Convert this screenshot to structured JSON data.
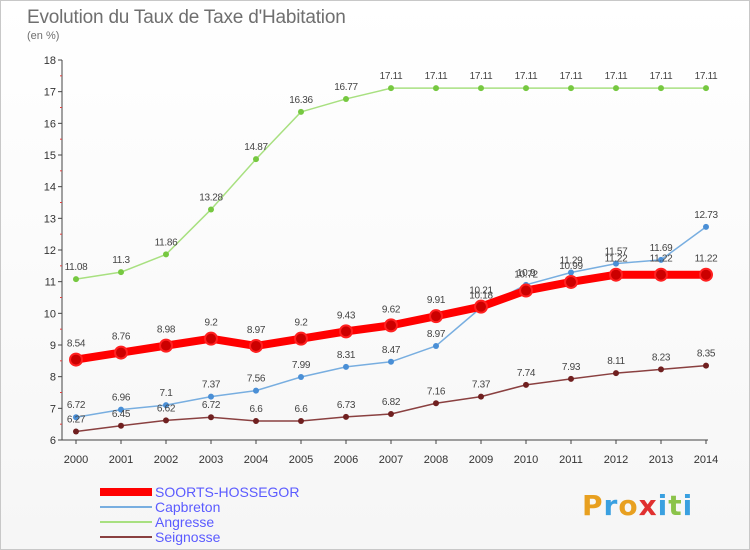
{
  "title": "Evolution du Taux de Taxe d'Habitation",
  "unit": "(en %)",
  "logo": {
    "text": "Proxiti",
    "letters": [
      "P",
      "r",
      "o",
      "x",
      "i",
      "t",
      "i"
    ],
    "colors": [
      "#e8a020",
      "#3aa0e0",
      "#e8a020",
      "#e03030",
      "#3aa0e0",
      "#8bc34a",
      "#3aa0e0"
    ]
  },
  "chart_data": {
    "type": "line",
    "title": "Evolution du Taux de Taxe d'Habitation",
    "ylabel": "(en %)",
    "xlabel": "",
    "ylim": [
      6,
      18
    ],
    "yticks": [
      6,
      7,
      8,
      9,
      10,
      11,
      12,
      13,
      14,
      15,
      16,
      17,
      18
    ],
    "grid": false,
    "legend_placement": "bottom-left",
    "categories": [
      "2000",
      "2001",
      "2002",
      "2003",
      "2004",
      "2005",
      "2006",
      "2007",
      "2008",
      "2009",
      "2010",
      "2011",
      "2012",
      "2013",
      "2014"
    ],
    "series": [
      {
        "name": "SOORTS-HOSSEGOR",
        "color": "#ff0000",
        "point_color": "#cc0000",
        "emphasis": true,
        "values": [
          8.54,
          8.76,
          8.98,
          9.2,
          8.97,
          9.2,
          9.43,
          9.62,
          9.91,
          10.21,
          10.72,
          10.99,
          11.22,
          11.22,
          11.22
        ],
        "labels": [
          "8.54",
          "8.76",
          "8.98",
          "9.2",
          "8.97",
          "9.2",
          "9.43",
          "9.62",
          "9.91",
          "10.21",
          "10.72",
          "10.99",
          "11.22",
          "11.22",
          "11.22"
        ]
      },
      {
        "name": "Capbreton",
        "color": "#78aee0",
        "point_color": "#4a8fd6",
        "emphasis": false,
        "values": [
          6.72,
          6.96,
          7.1,
          7.37,
          7.56,
          7.99,
          8.31,
          8.47,
          8.97,
          10.18,
          10.9,
          11.29,
          11.57,
          11.69,
          12.73
        ],
        "labels": [
          "6.72",
          "6.96",
          "7.1",
          "7.37",
          "7.56",
          "7.99",
          "8.31",
          "8.47",
          "8.97",
          "10.18",
          "10.9",
          "11.29",
          "11.57",
          "11.69",
          "12.73"
        ]
      },
      {
        "name": "Angresse",
        "color": "#a8e080",
        "point_color": "#76c840",
        "emphasis": false,
        "values": [
          11.08,
          11.3,
          11.86,
          13.28,
          14.87,
          16.36,
          16.77,
          17.11,
          17.11,
          17.11,
          17.11,
          17.11,
          17.11,
          17.11,
          17.11
        ],
        "labels": [
          "11.08",
          "11.3",
          "11.86",
          "13.28",
          "14.87",
          "16.36",
          "16.77",
          "17.11",
          "17.11",
          "17.11",
          "17.11",
          "17.11",
          "17.11",
          "17.11",
          "17.11"
        ]
      },
      {
        "name": "Seignosse",
        "color": "#8a4040",
        "point_color": "#702020",
        "emphasis": false,
        "values": [
          6.27,
          6.45,
          6.62,
          6.72,
          6.6,
          6.6,
          6.73,
          6.82,
          7.16,
          7.37,
          7.74,
          7.93,
          8.11,
          8.23,
          8.35
        ],
        "labels": [
          "6.27",
          "6.45",
          "6.62",
          "6.72",
          "6.6",
          "6.6",
          "6.73",
          "6.82",
          "7.16",
          "7.37",
          "7.74",
          "7.93",
          "8.11",
          "8.23",
          "8.35"
        ]
      }
    ]
  }
}
